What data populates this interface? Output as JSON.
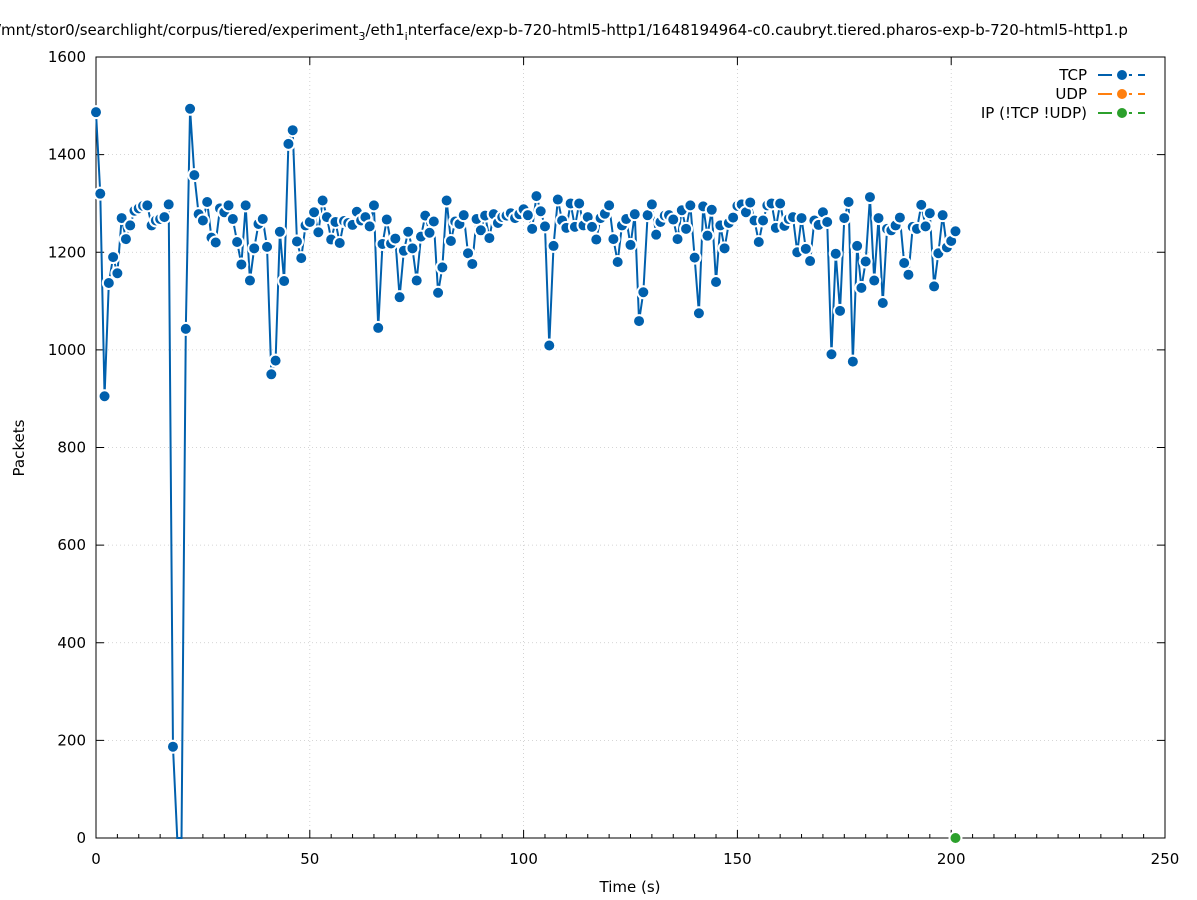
{
  "chart_data": {
    "type": "line",
    "title": "/mnt/stor0/searchlight/corpus/tiered/experiment",
    "title_sub": "3",
    "title_mid": "/eth1",
    "title_sub2": "i",
    "title_end": "nterface/exp-b-720-html5-http1/1648194964-c0.caubryt.tiered.pharos-exp-b-720-html5-http1.p",
    "xlabel": "Time (s)",
    "ylabel": "Packets",
    "xlim": [
      0,
      250
    ],
    "ylim": [
      0,
      1600
    ],
    "x_ticks": [
      0,
      50,
      100,
      150,
      200,
      250
    ],
    "y_ticks": [
      0,
      200,
      400,
      600,
      800,
      1000,
      1200,
      1400,
      1600
    ],
    "grid": true,
    "legend_position": "top-right",
    "series": [
      {
        "name": "TCP",
        "color": "#0060ad",
        "x": [
          0,
          1,
          2,
          3,
          4,
          5,
          6,
          7,
          8,
          9,
          10,
          11,
          12,
          13,
          14,
          15,
          16,
          17,
          18,
          19,
          20,
          21,
          22,
          23,
          24,
          25,
          26,
          27,
          28,
          29,
          30,
          31,
          32,
          33,
          34,
          35,
          36,
          37,
          38,
          39,
          40,
          41,
          42,
          43,
          44,
          45,
          46,
          47,
          48,
          49,
          50,
          51,
          52,
          53,
          54,
          55,
          56,
          57,
          58,
          59,
          60,
          61,
          62,
          63,
          64,
          65,
          66,
          67,
          68,
          69,
          70,
          71,
          72,
          73,
          74,
          75,
          76,
          77,
          78,
          79,
          80,
          81,
          82,
          83,
          84,
          85,
          86,
          87,
          88,
          89,
          90,
          91,
          92,
          93,
          94,
          95,
          96,
          97,
          98,
          99,
          100,
          101,
          102,
          103,
          104,
          105,
          106,
          107,
          108,
          109,
          110,
          111,
          112,
          113,
          114,
          115,
          116,
          117,
          118,
          119,
          120,
          121,
          122,
          123,
          124,
          125,
          126,
          127,
          128,
          129,
          130,
          131,
          132,
          133,
          134,
          135,
          136,
          137,
          138,
          139,
          140,
          141,
          142,
          143,
          144,
          145,
          146,
          147,
          148,
          149,
          150,
          151,
          152,
          153,
          154,
          155,
          156,
          157,
          158,
          159,
          160,
          161,
          162,
          163,
          164,
          165,
          166,
          167,
          168,
          169,
          170,
          171,
          172,
          173,
          174,
          175,
          176,
          177,
          178,
          179,
          180,
          181,
          182,
          183,
          184,
          185,
          186,
          187,
          188,
          189,
          190,
          191,
          192,
          193,
          194,
          195,
          196,
          197,
          198,
          199,
          200,
          201
        ],
        "y": [
          1487,
          1320,
          905,
          1137,
          1190,
          1157,
          1270,
          1227,
          1255,
          1285,
          1290,
          1295,
          1296,
          1255,
          1265,
          1268,
          1272,
          1298,
          187,
          0,
          0,
          1043,
          1494,
          1358,
          1278,
          1265,
          1303,
          1230,
          1220,
          1290,
          1282,
          1296,
          1268,
          1221,
          1175,
          1296,
          1142,
          1208,
          1258,
          1268,
          1211,
          950,
          978,
          1242,
          1141,
          1422,
          1450,
          1222,
          1188,
          1255,
          1262,
          1282,
          1241,
          1306,
          1272,
          1226,
          1262,
          1219,
          1264,
          1260,
          1256,
          1283,
          1265,
          1272,
          1253,
          1296,
          1045,
          1217,
          1267,
          1218,
          1228,
          1108,
          1203,
          1242,
          1208,
          1142,
          1232,
          1275,
          1240,
          1263,
          1117,
          1169,
          1306,
          1223,
          1263,
          1258,
          1276,
          1198,
          1176,
          1268,
          1245,
          1275,
          1229,
          1278,
          1260,
          1272,
          1275,
          1280,
          1270,
          1278,
          1288,
          1276,
          1248,
          1315,
          1284,
          1253,
          1009,
          1213,
          1308,
          1265,
          1250,
          1300,
          1252,
          1300,
          1255,
          1272,
          1252,
          1226,
          1270,
          1279,
          1296,
          1227,
          1180,
          1255,
          1268,
          1215,
          1278,
          1059,
          1118,
          1276,
          1298,
          1236,
          1262,
          1275,
          1276,
          1267,
          1227,
          1286,
          1248,
          1296,
          1189,
          1075,
          1294,
          1234,
          1287,
          1139,
          1255,
          1208,
          1260,
          1271,
          1295,
          1298,
          1282,
          1302,
          1265,
          1221,
          1265,
          1296,
          1300,
          1250,
          1300,
          1254,
          1268,
          1272,
          1200,
          1270,
          1207,
          1182,
          1265,
          1256,
          1282,
          1262,
          991,
          1197,
          1080,
          1270,
          1303,
          976,
          1213,
          1127,
          1181,
          1313,
          1142,
          1270,
          1096,
          1248,
          1245,
          1255,
          1271,
          1178,
          1154,
          1252,
          1248,
          1297,
          1253,
          1280,
          1130,
          1198,
          1276,
          1210,
          1223,
          1243
        ]
      },
      {
        "name": "UDP",
        "color": "#ff7f0e",
        "x": [],
        "y": []
      },
      {
        "name": "IP (!TCP  !UDP)",
        "color": "#2ca02c",
        "x": [
          201
        ],
        "y": [
          0
        ]
      }
    ]
  }
}
